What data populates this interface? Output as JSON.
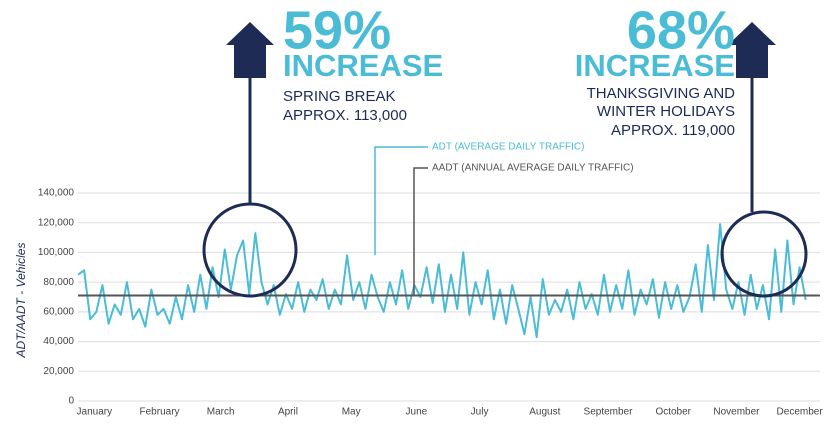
{
  "chart_data": {
    "type": "line",
    "y_label": "ADT/AADT  -  Vehicles",
    "x": [
      1,
      4,
      7,
      10,
      13,
      16,
      19,
      22,
      25,
      28,
      31,
      34,
      37,
      40,
      43,
      46,
      49,
      52,
      55,
      58,
      61,
      64,
      67,
      70,
      73,
      76,
      79,
      82,
      85,
      88,
      91,
      94,
      97,
      100,
      103,
      106,
      109,
      112,
      115,
      118,
      121,
      124,
      127,
      130,
      133,
      136,
      139,
      142,
      145,
      148,
      151,
      154,
      157,
      160,
      163,
      166,
      169,
      172,
      175,
      178,
      181,
      184,
      187,
      190,
      193,
      196,
      199,
      202,
      205,
      208,
      211,
      214,
      217,
      220,
      223,
      226,
      229,
      232,
      235,
      238,
      241,
      244,
      247,
      250,
      253,
      256,
      259,
      262,
      265,
      268,
      271,
      274,
      277,
      280,
      283,
      286,
      289,
      292,
      295,
      298,
      301,
      304,
      307,
      310,
      313,
      316,
      319,
      322,
      325,
      328,
      331,
      334,
      337,
      340,
      343,
      346,
      349,
      352,
      355,
      358
    ],
    "series": [
      {
        "name": "ADT (AVERAGE DAILY TRAFFIC)",
        "color": "#4bbcd6",
        "values": [
          85000,
          88000,
          55000,
          60000,
          78000,
          52000,
          65000,
          58000,
          80000,
          55000,
          62000,
          50000,
          75000,
          58000,
          62000,
          52000,
          70000,
          55000,
          78000,
          60000,
          85000,
          62000,
          90000,
          70000,
          102000,
          75000,
          98000,
          108000,
          72000,
          113000,
          80000,
          65000,
          78000,
          58000,
          72000,
          62000,
          80000,
          60000,
          75000,
          68000,
          82000,
          62000,
          75000,
          65000,
          98000,
          68000,
          80000,
          62000,
          85000,
          70000,
          60000,
          80000,
          65000,
          88000,
          62000,
          78000,
          70000,
          90000,
          66000,
          92000,
          60000,
          85000,
          62000,
          100000,
          58000,
          80000,
          65000,
          88000,
          55000,
          75000,
          52000,
          78000,
          62000,
          45000,
          70000,
          43000,
          82000,
          58000,
          68000,
          60000,
          75000,
          55000,
          80000,
          62000,
          72000,
          58000,
          85000,
          60000,
          78000,
          62000,
          88000,
          58000,
          75000,
          65000,
          82000,
          56000,
          80000,
          62000,
          78000,
          60000,
          70000,
          92000,
          60000,
          105000,
          68000,
          119000,
          75000,
          62000,
          80000,
          58000,
          85000,
          62000,
          78000,
          55000,
          102000,
          60000,
          108000,
          65000,
          90000,
          68000
        ]
      }
    ],
    "aadt": {
      "name": "AADT (ANNUAL AVERAGE DAILY TRAFFIC)",
      "value": 71000,
      "color": "#555555"
    },
    "xlim": [
      1,
      365
    ],
    "xticks": [
      {
        "value": 9,
        "label": "January"
      },
      {
        "value": 41,
        "label": "February"
      },
      {
        "value": 71,
        "label": "March"
      },
      {
        "value": 104,
        "label": "April"
      },
      {
        "value": 135,
        "label": "May"
      },
      {
        "value": 167,
        "label": "June"
      },
      {
        "value": 198,
        "label": "July"
      },
      {
        "value": 230,
        "label": "August"
      },
      {
        "value": 261,
        "label": "September"
      },
      {
        "value": 293,
        "label": "October"
      },
      {
        "value": 324,
        "label": "November"
      },
      {
        "value": 355,
        "label": "December"
      }
    ],
    "ylim": [
      0,
      140000
    ],
    "yticks": [
      0,
      {
        "value": 20000,
        "label": "20,000"
      },
      {
        "value": 40000,
        "label": "40,000"
      },
      {
        "value": 60000,
        "label": "60,000"
      },
      {
        "value": 80000,
        "label": "80,000"
      },
      {
        "value": 100000,
        "label": "100,000"
      },
      {
        "value": 120000,
        "label": "120,000"
      },
      {
        "value": 140000,
        "label": "140,000"
      }
    ],
    "grid": true,
    "annotations": [
      {
        "percent": "59%",
        "label": "INCREASE",
        "lines": [
          "SPRING BREAK",
          "APPROX. 113,000"
        ]
      },
      {
        "percent": "68%",
        "label": "INCREASE",
        "lines": [
          "THANKSGIVING AND",
          "WINTER HOLIDAYS",
          "APPROX. 119,000"
        ]
      }
    ]
  }
}
